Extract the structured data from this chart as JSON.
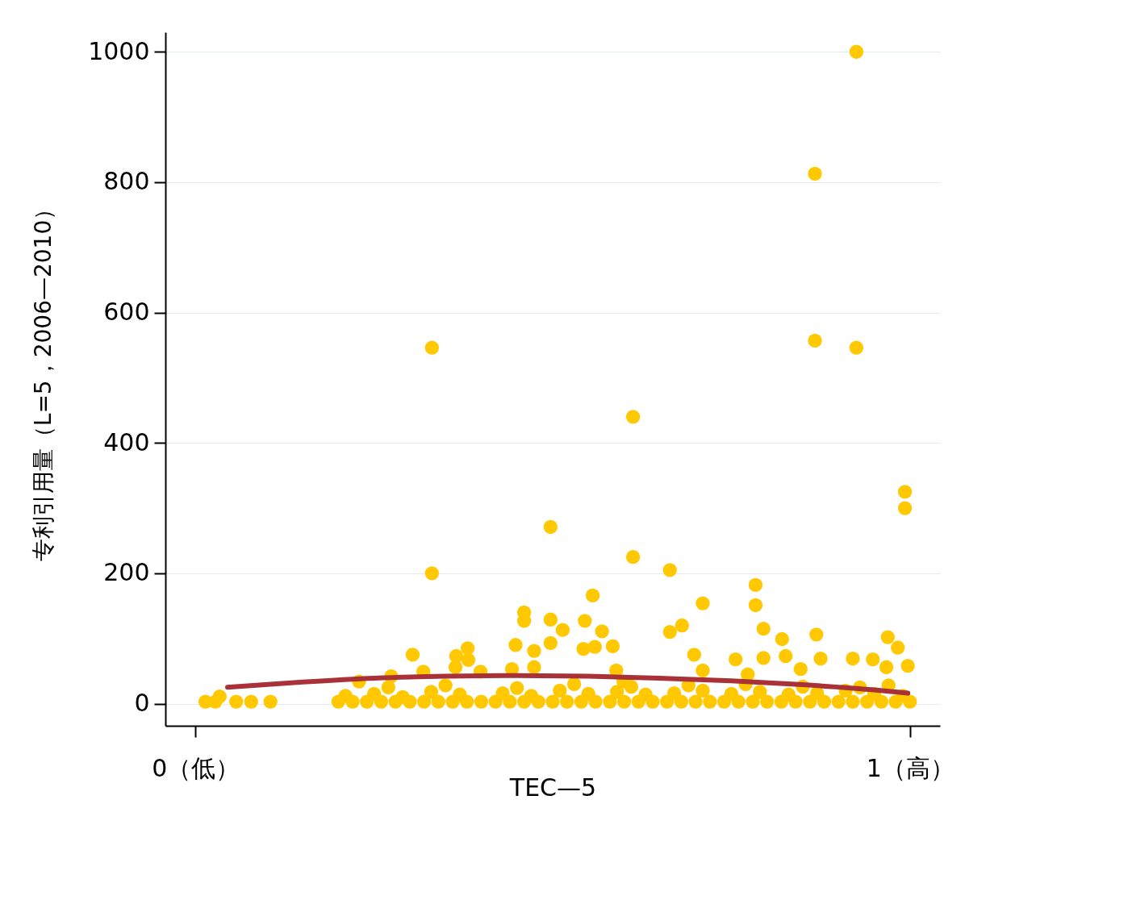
{
  "chart_data": {
    "type": "scatter",
    "xlabel": "TEC—5",
    "ylabel": "专利引用量（L=5，2006—2010）",
    "xlim": [
      -0.042,
      1.042
    ],
    "ylim": [
      -34,
      1030
    ],
    "xticks": [
      {
        "value": 0,
        "label": "0（低）"
      },
      {
        "value": 1,
        "label": "1（高）"
      }
    ],
    "yticks": [
      0,
      200,
      400,
      600,
      800,
      1000
    ],
    "grid": "y",
    "series": [
      {
        "color": "#ffc800",
        "marker": "circle",
        "x": [
          0.925,
          0.867,
          0.867,
          0.925,
          0.331,
          0.6125,
          0.993,
          0.993,
          0.497,
          0.331,
          0.6125,
          0.664,
          0.784,
          0.784,
          0.556,
          0.71,
          0.46,
          0.46,
          0.497,
          0.545,
          0.514,
          0.569,
          0.681,
          0.664,
          0.795,
          0.869,
          0.821,
          0.969,
          0.448,
          0.474,
          0.497,
          0.381,
          0.365,
          0.304,
          0.543,
          0.559,
          0.584,
          0.698,
          0.983,
          0.756,
          0.795,
          0.826,
          0.875,
          0.92,
          0.948,
          0.967,
          0.997,
          0.382,
          0.364,
          0.399,
          0.319,
          0.274,
          0.443,
          0.474,
          0.589,
          0.71,
          0.773,
          0.847,
          0.229,
          0.599,
          0.014,
          0.034,
          0.028,
          0.057,
          0.078,
          0.105,
          0.2,
          0.22,
          0.24,
          0.26,
          0.28,
          0.3,
          0.32,
          0.34,
          0.36,
          0.38,
          0.4,
          0.42,
          0.44,
          0.46,
          0.48,
          0.5,
          0.52,
          0.54,
          0.56,
          0.58,
          0.6,
          0.62,
          0.64,
          0.66,
          0.68,
          0.7,
          0.72,
          0.74,
          0.76,
          0.78,
          0.8,
          0.82,
          0.84,
          0.86,
          0.88,
          0.9,
          0.92,
          0.94,
          0.96,
          0.98,
          1.0,
          0.21,
          0.25,
          0.29,
          0.33,
          0.37,
          0.43,
          0.47,
          0.51,
          0.55,
          0.59,
          0.63,
          0.67,
          0.71,
          0.75,
          0.79,
          0.83,
          0.87,
          0.91,
          0.95,
          0.99,
          0.27,
          0.35,
          0.45,
          0.53,
          0.61,
          0.69,
          0.77,
          0.85,
          0.93,
          0.97
        ],
        "values": [
          1000,
          813,
          557,
          546,
          546,
          440,
          325,
          300,
          271,
          200,
          225,
          205,
          182,
          151,
          166,
          154,
          140,
          127,
          129,
          127,
          113,
          111,
          120,
          110,
          115,
          106,
          99,
          102,
          90,
          81,
          93,
          85,
          73,
          75,
          84,
          87,
          88,
          75,
          86,
          68,
          70,
          73,
          69,
          69,
          68,
          56,
          58,
          67,
          56,
          49,
          49,
          42,
          53,
          56,
          51,
          51,
          45,
          53,
          34,
          34,
          3,
          11,
          3,
          3,
          3,
          3,
          3,
          3,
          3,
          3,
          3,
          3,
          3,
          3,
          3,
          3,
          3,
          3,
          3,
          3,
          3,
          3,
          3,
          3,
          3,
          3,
          3,
          3,
          3,
          3,
          3,
          3,
          3,
          3,
          3,
          3,
          3,
          3,
          3,
          3,
          3,
          3,
          3,
          3,
          3,
          3,
          3,
          12,
          15,
          10,
          18,
          14,
          16,
          12,
          20,
          15,
          18,
          14,
          16,
          20,
          15,
          18,
          14,
          16,
          20,
          15,
          12,
          25,
          28,
          24,
          30,
          26,
          28,
          30,
          26,
          25,
          28
        ]
      },
      {
        "type": "line",
        "color": "#a83238",
        "marker": "none",
        "line_style": "solid",
        "x": [
          0.045,
          0.15,
          0.25,
          0.35,
          0.45,
          0.55,
          0.65,
          0.75,
          0.85,
          0.95,
          0.997
        ],
        "values": [
          25,
          33,
          39,
          42,
          43,
          42,
          39,
          35,
          29,
          21,
          16
        ]
      }
    ]
  }
}
